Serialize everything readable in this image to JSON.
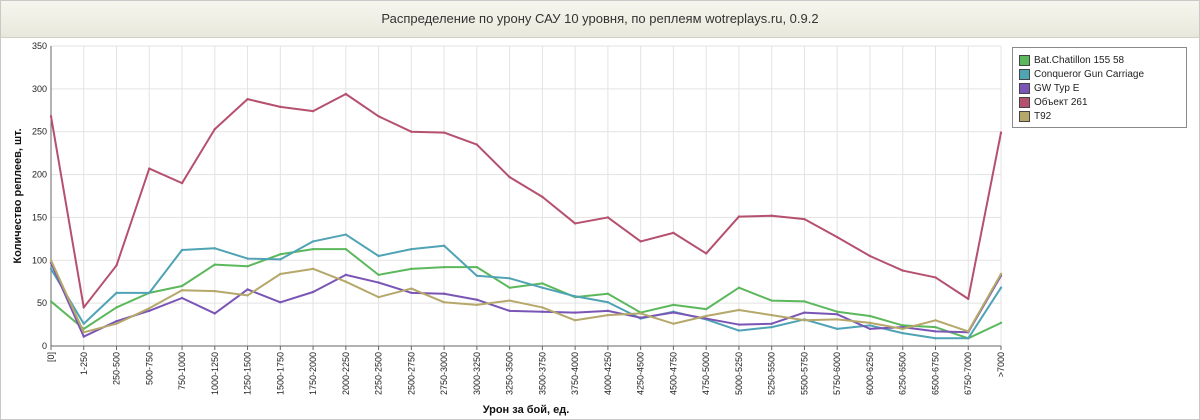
{
  "chart_data": {
    "type": "line",
    "title": "Распределение по урону САУ 10 уровня, по реплеям wotreplays.ru, 0.9.2",
    "xlabel": "Урон за бой, ед.",
    "ylabel": "Количество реплеев, шт.",
    "ylim": [
      0,
      350
    ],
    "yticks": [
      0,
      50,
      100,
      150,
      200,
      250,
      300,
      350
    ],
    "grid": true,
    "legend_position": "top-right",
    "categories": [
      "[0]",
      "1-250",
      "250-500",
      "500-750",
      "750-1000",
      "1000-1250",
      "1250-1500",
      "1500-1750",
      "1750-2000",
      "2000-2250",
      "2250-2500",
      "2500-2750",
      "2750-3000",
      "3000-3250",
      "3250-3500",
      "3500-3750",
      "3750-4000",
      "4000-4250",
      "4250-4500",
      "4500-4750",
      "4750-5000",
      "5000-5250",
      "5250-5500",
      "5500-5750",
      "5750-6000",
      "6000-6250",
      "6250-6500",
      "6500-6750",
      "6750-7000",
      ">7000"
    ],
    "series": [
      {
        "name": "Bat.Chatillon 155 58",
        "color": "#5cb85c",
        "values": [
          52,
          20,
          45,
          62,
          70,
          95,
          93,
          107,
          113,
          113,
          83,
          90,
          92,
          92,
          68,
          73,
          57,
          61,
          39,
          48,
          43,
          68,
          53,
          52,
          40,
          35,
          24,
          22,
          9,
          27
        ]
      },
      {
        "name": "Conqueror Gun Carriage",
        "color": "#4fa3b5",
        "values": [
          90,
          26,
          62,
          62,
          112,
          114,
          102,
          101,
          122,
          130,
          105,
          113,
          117,
          82,
          79,
          68,
          58,
          51,
          32,
          40,
          31,
          18,
          22,
          31,
          20,
          24,
          15,
          9,
          9,
          68
        ]
      },
      {
        "name": "GW Typ E",
        "color": "#7a55b5",
        "values": [
          97,
          11,
          29,
          41,
          56,
          38,
          66,
          51,
          63,
          83,
          74,
          62,
          61,
          54,
          41,
          40,
          39,
          41,
          33,
          39,
          32,
          25,
          26,
          39,
          37,
          20,
          22,
          17,
          16,
          82
        ]
      },
      {
        "name": "Объект 261",
        "color": "#b5506e",
        "values": [
          268,
          45,
          94,
          207,
          190,
          253,
          288,
          279,
          274,
          294,
          268,
          250,
          249,
          235,
          197,
          174,
          143,
          150,
          122,
          132,
          108,
          151,
          152,
          148,
          127,
          105,
          88,
          80,
          55,
          249
        ]
      },
      {
        "name": "T92",
        "color": "#b5a86a",
        "values": [
          100,
          16,
          26,
          44,
          65,
          64,
          59,
          84,
          90,
          75,
          57,
          67,
          51,
          48,
          53,
          45,
          30,
          36,
          38,
          26,
          35,
          42,
          36,
          30,
          31,
          27,
          20,
          30,
          17,
          84
        ]
      }
    ]
  }
}
